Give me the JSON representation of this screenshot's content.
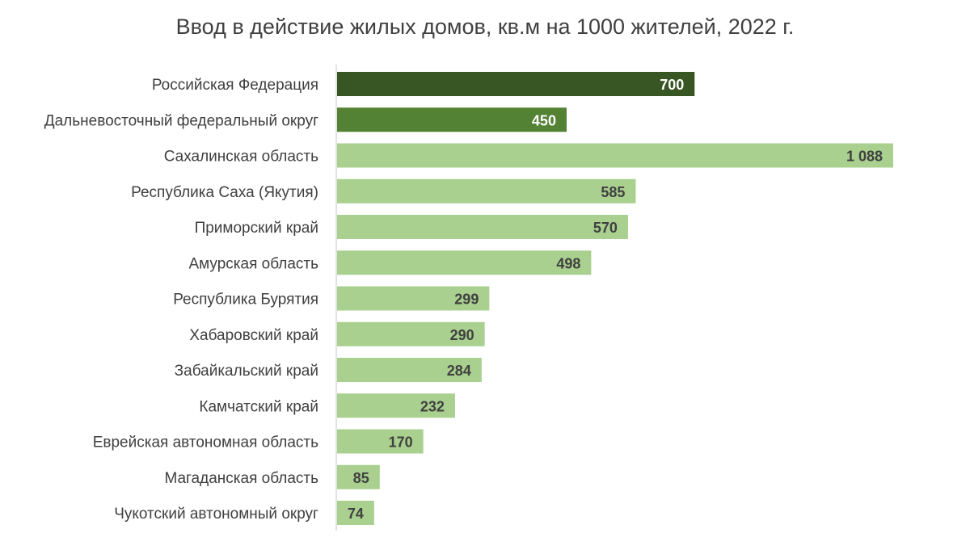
{
  "chart_data": {
    "type": "bar",
    "orientation": "horizontal",
    "title": "Ввод в действие жилых домов, кв.м на 1000 жителей, 2022 г.",
    "categories": [
      "Российская Федерация",
      "Дальневосточный федеральный округ",
      "Сахалинская область",
      "Республика Саха (Якутия)",
      "Приморский край",
      "Амурская область",
      "Республика Бурятия",
      "Хабаровский край",
      "Забайкальский край",
      "Камчатский край",
      "Еврейская автономная область",
      "Магаданская область",
      "Чукотский автономный округ"
    ],
    "values": [
      700,
      450,
      1088,
      585,
      570,
      498,
      299,
      290,
      284,
      232,
      170,
      85,
      74
    ],
    "value_labels": [
      "700",
      "450",
      "1 088",
      "585",
      "570",
      "498",
      "299",
      "290",
      "284",
      "232",
      "170",
      "85",
      "74"
    ],
    "colors": [
      "#375623",
      "#548235",
      "#a9d08e",
      "#a9d08e",
      "#a9d08e",
      "#a9d08e",
      "#a9d08e",
      "#a9d08e",
      "#a9d08e",
      "#a9d08e",
      "#a9d08e",
      "#a9d08e",
      "#a9d08e"
    ],
    "label_colors": [
      "#ffffff",
      "#ffffff",
      "#404040",
      "#404040",
      "#404040",
      "#404040",
      "#404040",
      "#404040",
      "#404040",
      "#404040",
      "#404040",
      "#404040",
      "#404040"
    ],
    "xlim": [
      0,
      1088
    ],
    "grid": false,
    "legend": "none"
  }
}
